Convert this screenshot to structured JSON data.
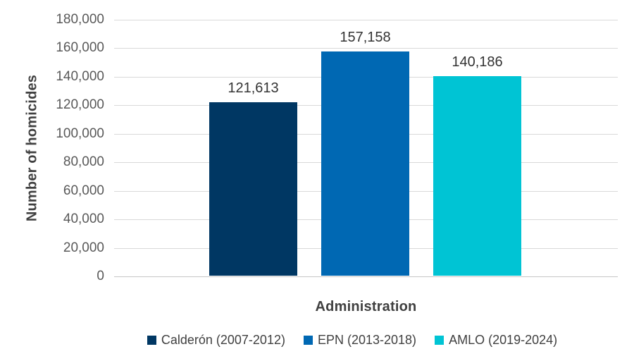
{
  "chart_data": {
    "type": "bar",
    "title": "",
    "xlabel": "Administration",
    "ylabel": "Number of homicides",
    "categories": [
      "Calderón (2007-2012)",
      "EPN (2013-2018)",
      "AMLO (2019-2024)"
    ],
    "values": [
      121613,
      157158,
      140186
    ],
    "data_labels": [
      "121,613",
      "157,158",
      "140,186"
    ],
    "ylim": [
      0,
      180000
    ],
    "ytick_step": 20000,
    "yticks": [
      "180,000",
      "160,000",
      "140,000",
      "120,000",
      "100,000",
      "80,000",
      "60,000",
      "40,000",
      "20,000",
      "0"
    ],
    "grid": true,
    "legend_position": "bottom",
    "bar_colors": [
      "#003763",
      "#0068B3",
      "#00C4D4"
    ],
    "gridline_color": "#D9D9D9",
    "axis_line_color": "#C6C6C6",
    "tick_label_color": "#595959",
    "data_label_color": "#333333",
    "axis_title_color": "#404040"
  },
  "legend": {
    "items": [
      {
        "label": "Calderón (2007-2012)",
        "color": "#003763"
      },
      {
        "label": "EPN (2013-2018)",
        "color": "#0068B3"
      },
      {
        "label": "AMLO (2019-2024)",
        "color": "#00C4D4"
      }
    ]
  }
}
